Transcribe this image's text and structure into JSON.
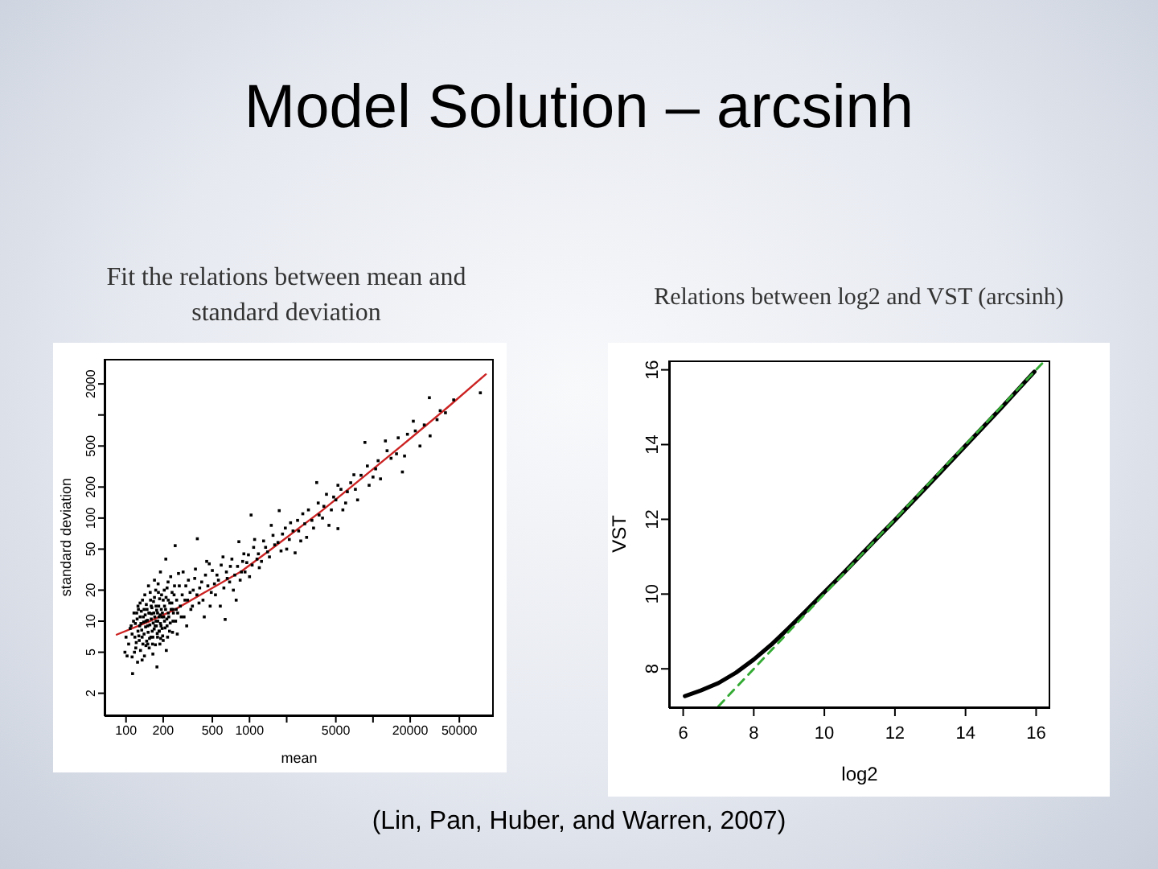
{
  "chart_data": [
    {
      "type": "scatter",
      "title": "Model Solution – arcsinh",
      "subtitle": "Fit the relations between mean and standard deviation",
      "xlabel": "mean",
      "ylabel": "standard deviation",
      "log": "xy",
      "xlim": [
        67,
        95000
      ],
      "ylim": [
        1.2,
        3500
      ],
      "xticks": [
        100,
        200,
        500,
        1000,
        {
          "value": 2000,
          "label": null
        },
        5000,
        {
          "value": 10000,
          "label": null
        },
        20000,
        50000
      ],
      "yticks": [
        2,
        5,
        10,
        20,
        50,
        100,
        200,
        500,
        {
          "value": 1000,
          "label": null
        },
        2000
      ],
      "series": [
        {
          "type": "scatter",
          "color": "#000000",
          "marker": "square",
          "x": [
            105,
            108,
            112,
            113,
            115,
            118,
            120,
            122,
            125,
            128,
            130,
            132,
            135,
            138,
            140,
            142,
            145,
            148,
            150,
            152,
            155,
            158,
            160,
            163,
            165,
            168,
            170,
            172,
            175,
            178,
            180,
            183,
            185,
            188,
            190,
            193,
            196,
            200,
            205,
            210,
            212,
            215,
            220,
            225,
            230,
            235,
            240,
            245,
            250,
            255,
            260,
            270,
            280,
            290,
            300,
            310,
            320,
            335,
            350,
            365,
            378,
            390,
            410,
            430,
            450,
            472,
            490,
            520,
            545,
            580,
            610,
            635,
            660,
            700,
            740,
            780,
            820,
            860,
            900,
            950,
            1000,
            1030,
            1080,
            1150,
            1200,
            1300,
            1400,
            1500,
            1600,
            1740,
            1850,
            2000,
            2150,
            2340,
            2500,
            2700,
            2900,
            3200,
            3500,
            3660,
            4000,
            4400,
            4800,
            5200,
            5200,
            5700,
            6200,
            7000,
            7500,
            8600,
            9300,
            10500,
            11500,
            12600,
            14000,
            15500,
            17300,
            19000,
            21200,
            24000,
            28600,
            29000,
            33000,
            38600,
            45000,
            74000,
            125,
            135,
            145,
            155,
            165,
            175,
            185,
            195,
            205,
            215,
            130,
            150,
            170,
            190,
            200,
            140,
            160,
            180,
            220,
            240,
            98,
            100,
            102,
            110,
            112,
            116,
            117,
            119,
            121,
            123,
            124,
            126,
            127,
            129,
            131,
            133,
            134,
            136,
            137,
            139,
            141,
            143,
            144,
            146,
            147,
            149,
            151,
            153,
            154,
            156,
            157,
            159,
            161,
            162,
            164,
            166,
            167,
            169,
            171,
            173,
            174,
            176,
            177,
            179,
            181,
            182,
            184,
            186,
            187,
            189,
            191,
            192,
            194,
            197,
            198,
            202,
            204,
            207,
            209,
            211,
            214,
            217,
            219,
            222,
            226,
            228,
            232,
            236,
            238,
            242,
            247,
            252,
            257,
            262,
            266,
            275,
            285,
            295,
            305,
            315,
            330,
            345,
            360,
            375,
            395,
            420,
            440,
            460,
            480,
            500,
            530,
            560,
            590,
            620,
            650,
            690,
            720,
            760,
            800,
            840,
            880,
            920,
            980,
            1050,
            1100,
            1180,
            1250,
            1350,
            1450,
            1550,
            1700,
            1800,
            1950,
            2100,
            2250,
            2450,
            2600,
            2800,
            3000,
            3300,
            3600,
            3900,
            4200,
            4600,
            5000,
            5500,
            6000,
            6600,
            7200,
            8000,
            9000,
            10000,
            11000,
            13000,
            16000,
            18000,
            22000,
            26000,
            35000
          ],
          "values": [
            6,
            8.5,
            4.5,
            3.1,
            10,
            7,
            5.5,
            12,
            8,
            6.5,
            15,
            9.5,
            4.2,
            11,
            7.5,
            18,
            5.8,
            13,
            9,
            22,
            6.8,
            16,
            10.5,
            8,
            4.8,
            12,
            25,
            9,
            14,
            3.6,
            7,
            19,
            11,
            6,
            30,
            13,
            8.5,
            16,
            10,
            40,
            5.2,
            21,
            12,
            8,
            27,
            15,
            10,
            18,
            54,
            13,
            7.5,
            22,
            11,
            30,
            16,
            9,
            25,
            13,
            20,
            32,
            63,
            15,
            24,
            11,
            38,
            36,
            19,
            23,
            28,
            14,
            42,
            10.4,
            26,
            34,
            20,
            16,
            59,
            30,
            45,
            37,
            27,
            107,
            52,
            40,
            33,
            60,
            47,
            85,
            55,
            118,
            70,
            50,
            90,
            46,
            75,
            110,
            65,
            95,
            221,
            107,
            130,
            85,
            160,
            208,
            79,
            120,
            180,
            263,
            150,
            542,
            208,
            300,
            240,
            560,
            380,
            420,
            280,
            650,
            870,
            500,
            1470,
            627,
            900,
            1050,
            1400,
            1640,
            14,
            7,
            10,
            12,
            7,
            10,
            8,
            11,
            14,
            9,
            11,
            6,
            17,
            9.5,
            6.5,
            13,
            14,
            12,
            16,
            13,
            5,
            7,
            4.6,
            9,
            7.5,
            12,
            5,
            9.5,
            6.2,
            10.5,
            4,
            13,
            7.2,
            9,
            5.2,
            12.5,
            8.2,
            16,
            6,
            9.8,
            4.6,
            11.5,
            8.8,
            14.5,
            6.4,
            10.2,
            7.8,
            12,
            5.5,
            9.2,
            19,
            7,
            11.8,
            13.5,
            6,
            9.6,
            15.5,
            8.4,
            11,
            5.9,
            20,
            9,
            12.8,
            7.6,
            10,
            23,
            14,
            8,
            16.5,
            11.5,
            6.8,
            9,
            18,
            12,
            7.2,
            11,
            20,
            8.6,
            13,
            17,
            10.5,
            7,
            24,
            11,
            15,
            9.6,
            13,
            19,
            7.8,
            12,
            22,
            10,
            16,
            12,
            29,
            14,
            18,
            11,
            22,
            16,
            19,
            14,
            26,
            18,
            21,
            16,
            28,
            22,
            14,
            31,
            18,
            25,
            35,
            21,
            30,
            24,
            40,
            28,
            34,
            25,
            38,
            30,
            44,
            35,
            62,
            45,
            38,
            52,
            42,
            68,
            58,
            48,
            80,
            62,
            75,
            95,
            60,
            88,
            120,
            80,
            140,
            100,
            170,
            120,
            150,
            190,
            140,
            220,
            190,
            260,
            320,
            250,
            360,
            450,
            600,
            400,
            700,
            800,
            1100
          ]
        },
        {
          "type": "line",
          "color": "#cc2222",
          "marker": "none",
          "x": [
            84,
            150,
            250,
            430,
            860,
            1500,
            3860,
            8000,
            17300,
            40000,
            82000
          ],
          "values": [
            7.4,
            9.8,
            13,
            18.9,
            30.5,
            50,
            118,
            240,
            510,
            1180,
            2480
          ]
        }
      ]
    },
    {
      "type": "line",
      "subtitle": "Relations between log2 and VST (arcsinh)",
      "xlabel": "log2",
      "ylabel": "VST",
      "xlim": [
        5.6,
        16.4
      ],
      "ylim": [
        6.95,
        16.25
      ],
      "xticks": [
        6,
        8,
        10,
        12,
        14,
        16
      ],
      "yticks": [
        8,
        10,
        12,
        14,
        16
      ],
      "annotations": [
        "(Lin, Pan, Huber, and Warren, 2007)"
      ],
      "series": [
        {
          "color": "#000000",
          "x": [
            6.05,
            6.5,
            7,
            7.5,
            8,
            8.5,
            9,
            9.5,
            10,
            10.5,
            11,
            11.5,
            12,
            13,
            14,
            15,
            15.95
          ],
          "values": [
            7.27,
            7.42,
            7.62,
            7.9,
            8.25,
            8.65,
            9.1,
            9.57,
            10.05,
            10.52,
            11.01,
            11.5,
            11.98,
            12.97,
            13.97,
            14.97,
            15.95
          ]
        },
        {
          "color": "#33aa33",
          "line_style": "dashed",
          "x": [
            7,
            16.2
          ],
          "values": [
            7,
            16.2
          ]
        }
      ]
    }
  ]
}
